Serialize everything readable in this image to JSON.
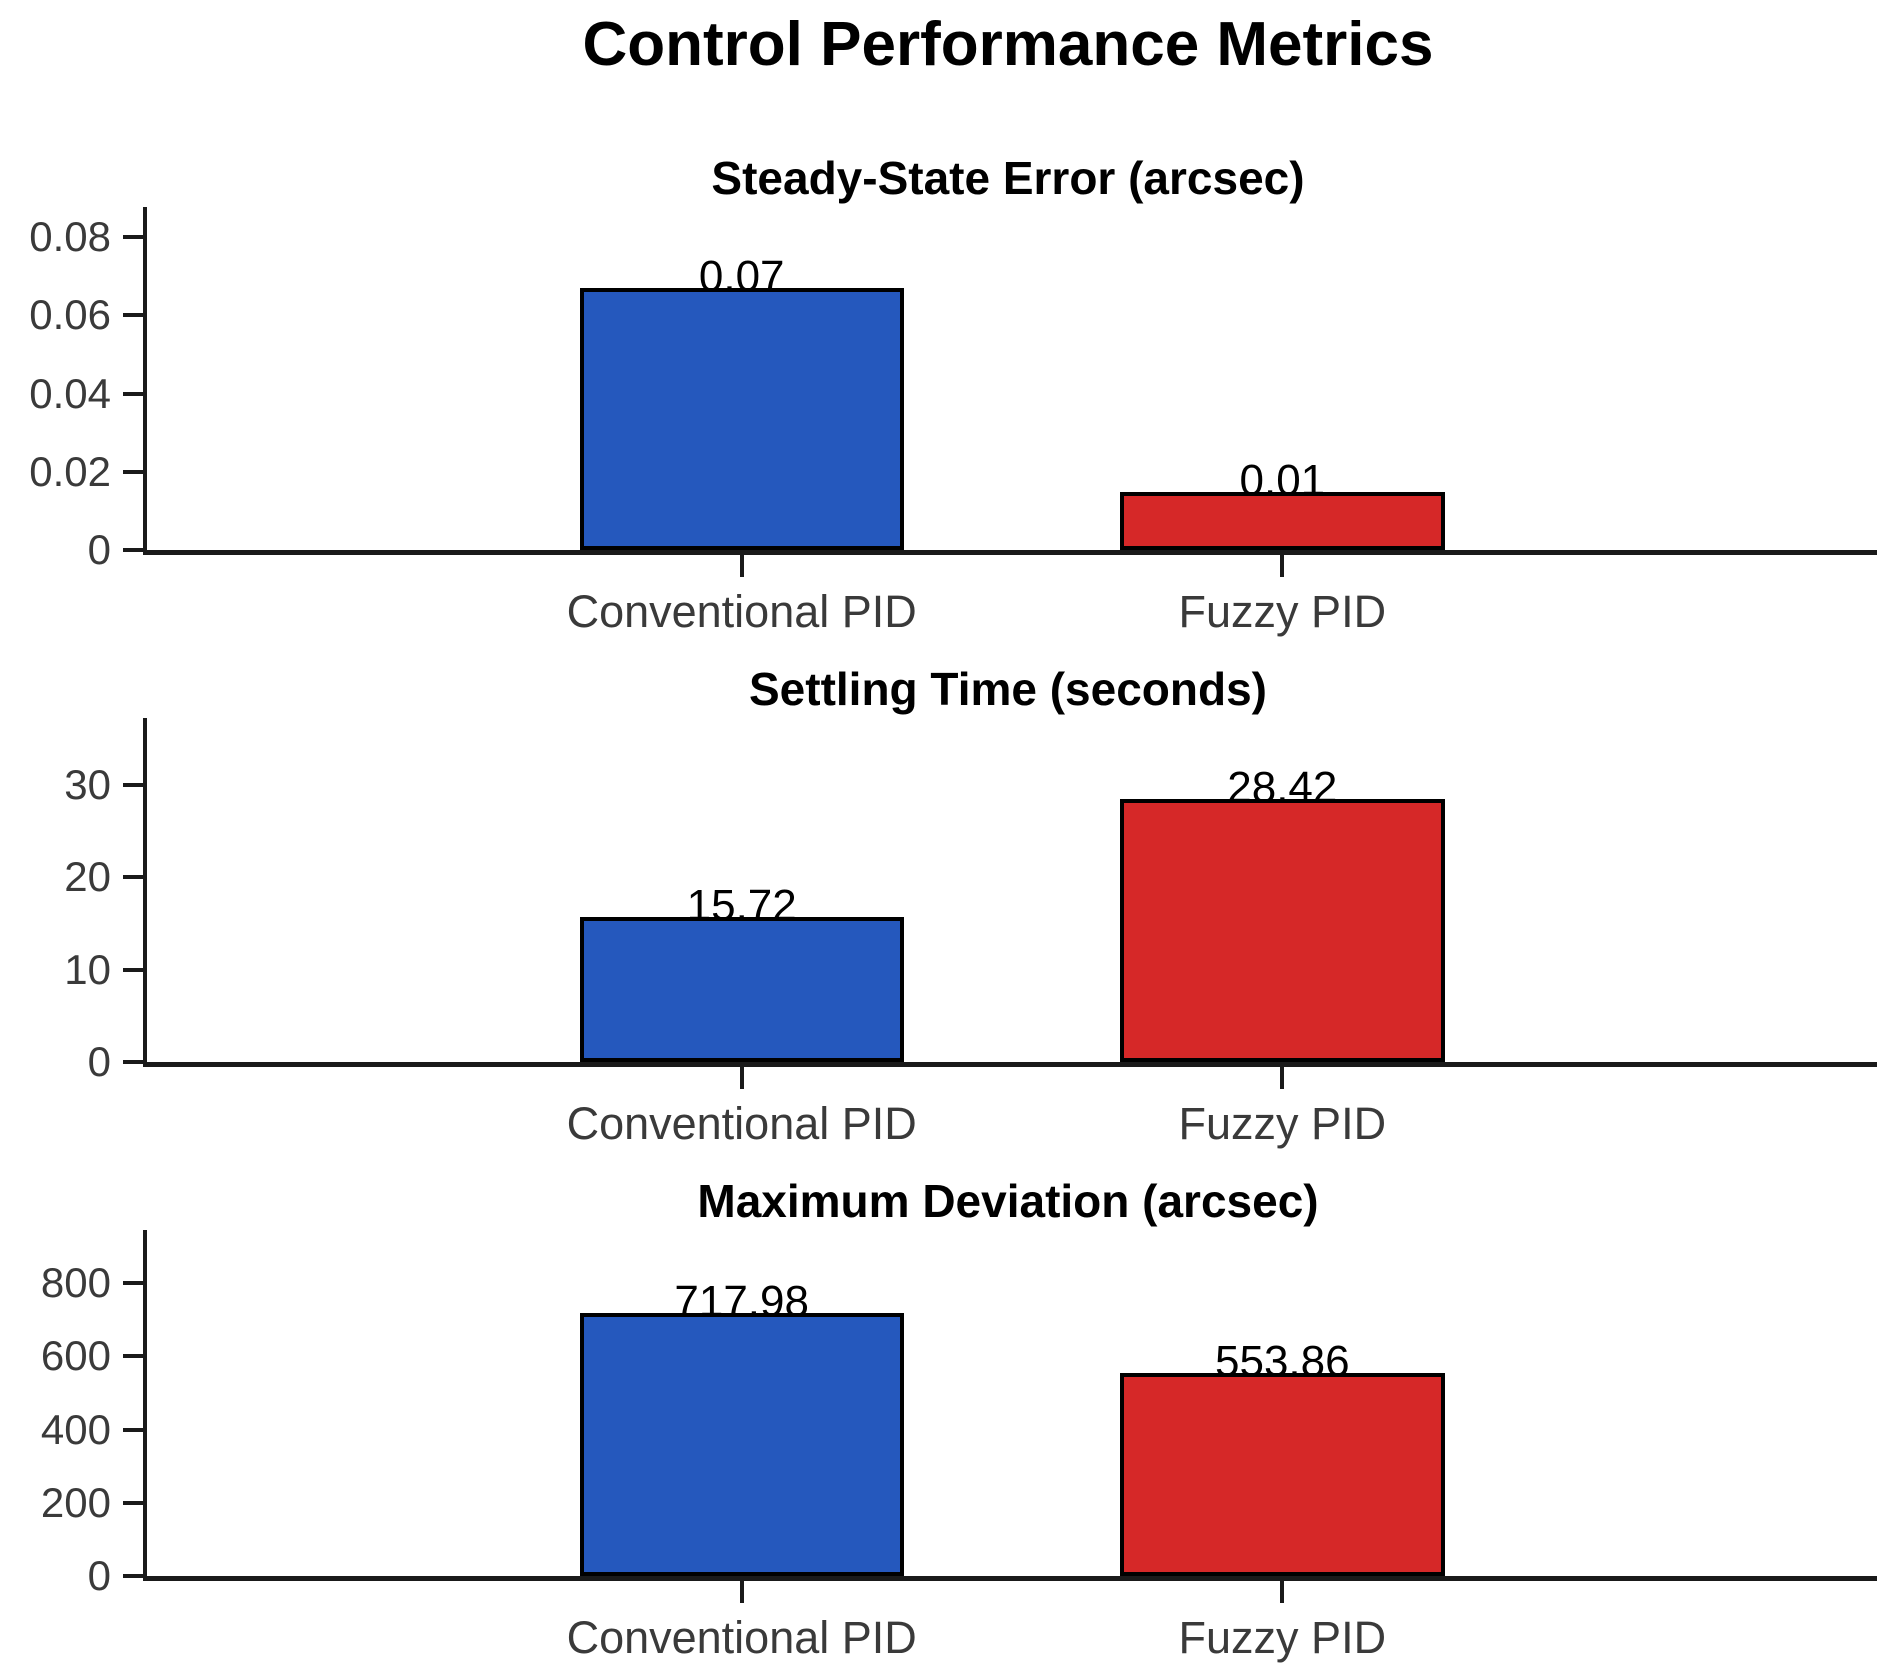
{
  "suptitle": "Control Performance Metrics",
  "colors": {
    "conventional_pid_bar": "#2558BD",
    "fuzzy_pid_bar": "#D62828",
    "bar_edge": "#000000",
    "axis_line": "#1a1a1a",
    "tick_label": "#3a3a3a",
    "title_text": "#000000",
    "background": "#ffffff"
  },
  "chart_data": [
    {
      "type": "bar",
      "title": "Steady-State Error (arcsec)",
      "categories": [
        "Conventional PID",
        "Fuzzy PID"
      ],
      "x": [
        1,
        2
      ],
      "values": [
        0.067,
        0.0148
      ],
      "value_labels": [
        "0.07",
        "0.01"
      ],
      "bar_colors": [
        "#2558BD",
        "#D62828"
      ],
      "bar_width": 0.6,
      "xlim": [
        -0.1,
        3.1
      ],
      "ylim": [
        0,
        0.0877
      ],
      "yticks": [
        0,
        0.02,
        0.04,
        0.06,
        0.08
      ],
      "ytick_labels": [
        "0",
        "0.02",
        "0.04",
        "0.06",
        "0.08"
      ],
      "grid": false,
      "legend": null
    },
    {
      "type": "bar",
      "title": "Settling Time (seconds)",
      "categories": [
        "Conventional PID",
        "Fuzzy PID"
      ],
      "x": [
        1,
        2
      ],
      "values": [
        15.72,
        28.42
      ],
      "value_labels": [
        "15.72",
        "28.42"
      ],
      "bar_colors": [
        "#2558BD",
        "#D62828"
      ],
      "bar_width": 0.6,
      "xlim": [
        -0.1,
        3.1
      ],
      "ylim": [
        0,
        37.2
      ],
      "yticks": [
        0,
        10,
        20,
        30
      ],
      "ytick_labels": [
        "0",
        "10",
        "20",
        "30"
      ],
      "grid": false,
      "legend": null
    },
    {
      "type": "bar",
      "title": "Maximum Deviation (arcsec)",
      "categories": [
        "Conventional PID",
        "Fuzzy PID"
      ],
      "x": [
        1,
        2
      ],
      "values": [
        717.98,
        553.86
      ],
      "value_labels": [
        "717.98",
        "553.86"
      ],
      "bar_colors": [
        "#2558BD",
        "#D62828"
      ],
      "bar_width": 0.6,
      "xlim": [
        -0.1,
        3.1
      ],
      "ylim": [
        0,
        945
      ],
      "yticks": [
        0,
        200,
        400,
        600,
        800
      ],
      "ytick_labels": [
        "0",
        "200",
        "400",
        "600",
        "800"
      ],
      "grid": false,
      "legend": null
    }
  ]
}
